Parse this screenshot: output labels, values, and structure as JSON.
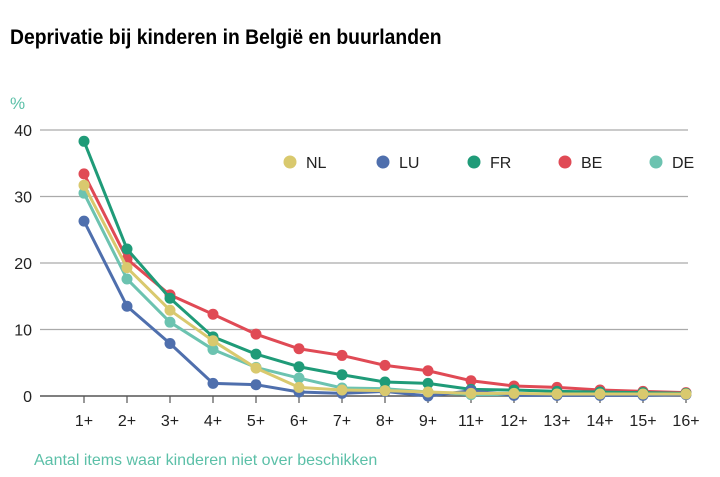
{
  "chart_data": {
    "type": "line",
    "title": "Deprivatie bij kinderen in België en buurlanden",
    "ylabel": "%",
    "xlabel": "Aantal items waar kinderen niet over beschikken",
    "ylim": [
      0,
      40
    ],
    "yticks": [
      0,
      10,
      20,
      30,
      40
    ],
    "grid": true,
    "legend_position": "top-right",
    "categories": [
      "1+",
      "2+",
      "3+",
      "4+",
      "5+",
      "6+",
      "7+",
      "8+",
      "9+",
      "11+",
      "12+",
      "13+",
      "14+",
      "15+",
      "16+"
    ],
    "series": [
      {
        "name": "NL",
        "color": "#d9c96e",
        "values": [
          31.7,
          19.3,
          12.9,
          8.3,
          4.2,
          1.3,
          0.9,
          0.8,
          0.6,
          0.4,
          0.4,
          0.3,
          0.3,
          0.3,
          0.3
        ]
      },
      {
        "name": "LU",
        "color": "#4f6fad",
        "values": [
          26.3,
          13.5,
          7.9,
          1.9,
          1.7,
          0.6,
          0.4,
          0.7,
          0.0,
          0.8,
          0.1,
          0.1,
          0.1,
          0.1,
          0.2
        ]
      },
      {
        "name": "FR",
        "color": "#1f9b78",
        "values": [
          38.3,
          22.1,
          14.7,
          8.9,
          6.3,
          4.4,
          3.2,
          2.1,
          1.9,
          1.0,
          0.9,
          0.7,
          0.6,
          0.5,
          0.4
        ]
      },
      {
        "name": "BE",
        "color": "#e04a55",
        "values": [
          33.4,
          20.6,
          15.2,
          12.3,
          9.3,
          7.1,
          6.1,
          4.6,
          3.8,
          2.3,
          1.5,
          1.3,
          0.9,
          0.7,
          0.5
        ]
      },
      {
        "name": "DE",
        "color": "#6cc3b0",
        "values": [
          30.5,
          17.6,
          11.1,
          7.0,
          4.3,
          2.7,
          1.2,
          1.1,
          0.6,
          0.2,
          0.2,
          0.2,
          0.2,
          0.2,
          0.3
        ]
      }
    ],
    "draw_order": [
      "DE",
      "BE",
      "FR",
      "LU",
      "NL"
    ],
    "accent_color": "#5cc0a8"
  }
}
